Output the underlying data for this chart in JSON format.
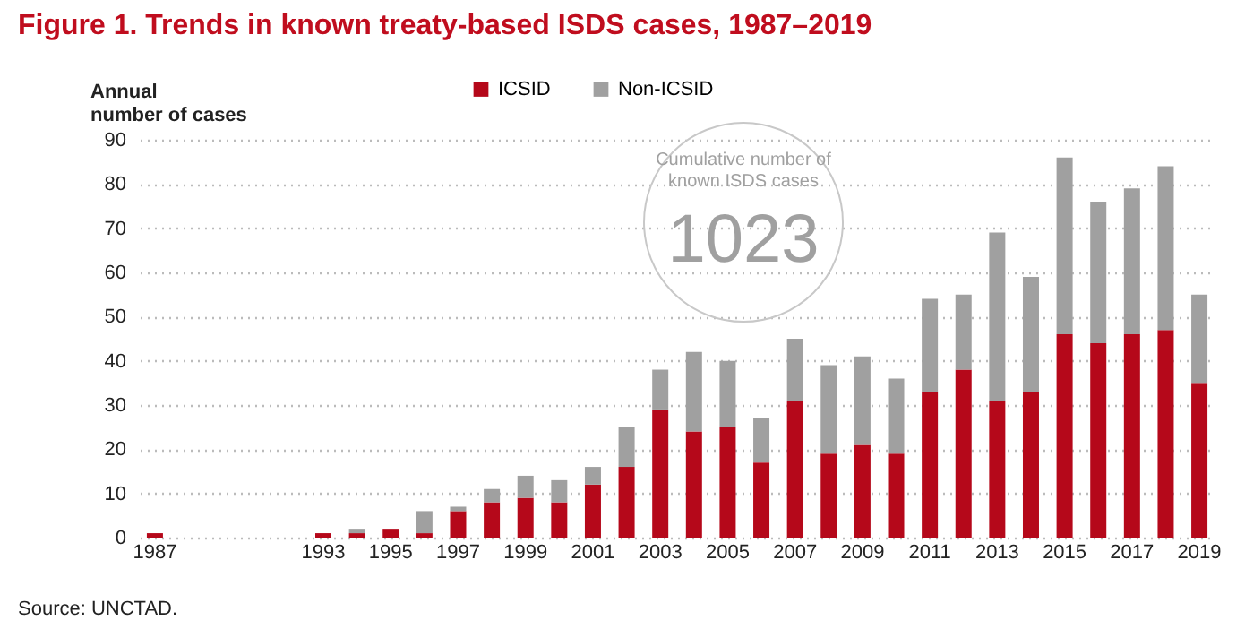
{
  "chart_data": {
    "type": "bar",
    "title": "Figure 1. Trends in known treaty-based ISDS cases, 1987–2019",
    "ylabel": "Annual\nnumber of cases",
    "categories": [
      "1987",
      null,
      null,
      null,
      null,
      "1993",
      null,
      "1995",
      null,
      "1997",
      null,
      "1999",
      null,
      "2001",
      null,
      "2003",
      null,
      "2005",
      null,
      "2007",
      null,
      "2009",
      null,
      "2011",
      null,
      "2013",
      null,
      "2015",
      null,
      "2017",
      null,
      "2019"
    ],
    "series": [
      {
        "name": "ICSID",
        "color": "#b5081a",
        "values": [
          1,
          null,
          null,
          null,
          null,
          1,
          1,
          2,
          1,
          6,
          8,
          9,
          8,
          12,
          16,
          29,
          24,
          25,
          17,
          31,
          19,
          21,
          19,
          33,
          38,
          31,
          33,
          46,
          44,
          46,
          47,
          35
        ]
      },
      {
        "name": "Non-ICSID",
        "color": "#a0a0a0",
        "values": [
          0,
          null,
          null,
          null,
          null,
          0,
          1,
          0,
          5,
          1,
          3,
          5,
          5,
          4,
          9,
          9,
          18,
          15,
          10,
          14,
          20,
          20,
          17,
          21,
          17,
          38,
          26,
          40,
          32,
          33,
          37,
          20
        ]
      }
    ],
    "stacked": true,
    "ylim": [
      0,
      90
    ],
    "yticks": [
      0,
      10,
      20,
      30,
      40,
      50,
      60,
      70,
      80,
      90
    ],
    "grid": "y",
    "legend": "top",
    "annotations": [
      "Cumulative number of known ISDS cases",
      "1023",
      "Source: UNCTAD."
    ]
  }
}
